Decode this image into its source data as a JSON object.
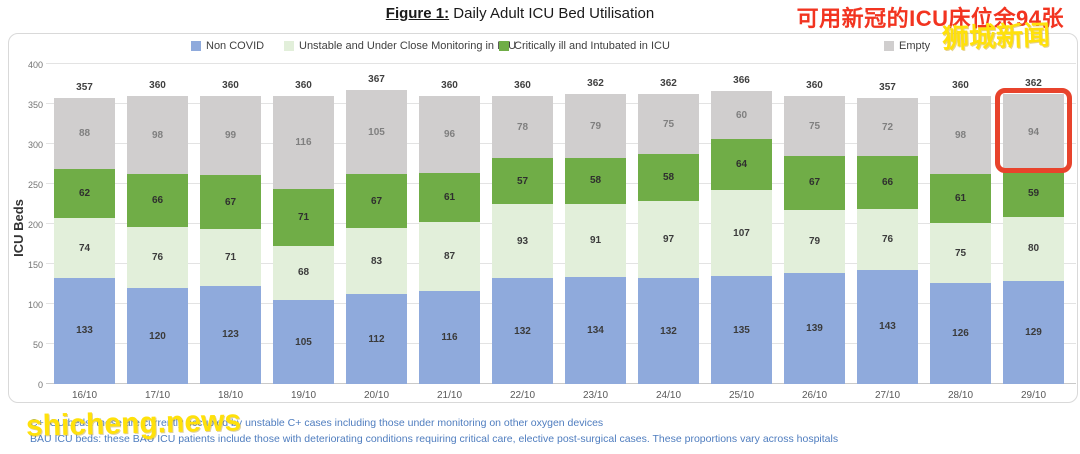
{
  "page": {
    "title_prefix": "Figure 1:",
    "title_rest": " Daily Adult ICU Bed Utilisation",
    "annotation_red": "可用新冠的ICU床位余94张",
    "watermark_top": "狮城新闻",
    "watermark_bottom": "shicheng.news",
    "footnote_line1": "C+ ICU beds: these are currently occupied by unstable C+ cases including those under monitoring on other oxygen devices",
    "footnote_line2": "BAU ICU beds: these BAU ICU patients include those with deteriorating conditions requiring critical care, elective post-surgical cases. These proportions vary across hospitals"
  },
  "chart_data": {
    "type": "bar",
    "stacked": true,
    "title": "Figure 1: Daily Adult ICU Bed Utilisation",
    "xlabel": "",
    "ylabel": "ICU Beds",
    "ylim": [
      0,
      400
    ],
    "yticks": [
      0,
      50,
      100,
      150,
      200,
      250,
      300,
      350,
      400
    ],
    "grid": true,
    "legend_position": "top-inside",
    "categories": [
      "16/10",
      "17/10",
      "18/10",
      "19/10",
      "20/10",
      "21/10",
      "22/10",
      "23/10",
      "24/10",
      "25/10",
      "26/10",
      "27/10",
      "28/10",
      "29/10"
    ],
    "series": [
      {
        "name": "Non COVID",
        "color": "#8FAADC",
        "label_color": "#3b3b3b",
        "values": [
          133,
          120,
          123,
          105,
          112,
          116,
          132,
          134,
          132,
          135,
          139,
          143,
          126,
          129
        ]
      },
      {
        "name": "Unstable and Under Close Monitoring in ICU",
        "color": "#E2EFDA",
        "label_color": "#3b3b3b",
        "values": [
          74,
          76,
          71,
          68,
          83,
          87,
          93,
          91,
          97,
          107,
          79,
          76,
          75,
          80
        ]
      },
      {
        "name": "Critically ill and Intubated in ICU",
        "color": "#70AD47",
        "label_color": "#2f2f2f",
        "values": [
          62,
          66,
          67,
          71,
          67,
          61,
          57,
          58,
          58,
          64,
          67,
          66,
          61,
          59
        ]
      },
      {
        "name": "Empty",
        "color": "#D0CECE",
        "label_color": "#7f7f7f",
        "values": [
          88,
          98,
          99,
          116,
          105,
          96,
          78,
          79,
          75,
          60,
          75,
          72,
          98,
          94
        ]
      }
    ],
    "totals": [
      357,
      360,
      360,
      360,
      367,
      360,
      360,
      362,
      362,
      366,
      360,
      357,
      360,
      362
    ],
    "highlight": {
      "category": "29/10",
      "series": "Empty",
      "color": "#E8432C",
      "value": 94
    }
  }
}
